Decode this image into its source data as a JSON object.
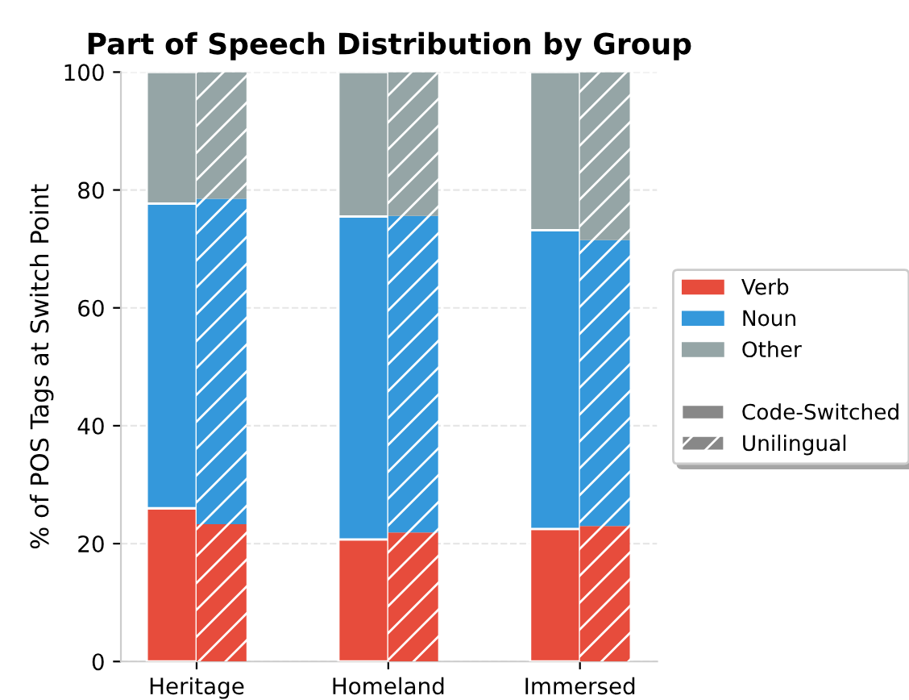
{
  "chart_data": [
    {
      "type": "bar",
      "stacked": true,
      "title": "Part of Speech Distribution by Group",
      "ylabel": "% of POS Tags at Switch Point",
      "categories": [
        "Heritage",
        "Homeland",
        "Immersed"
      ],
      "series": [
        {
          "name": "Verb",
          "color": "#e74c3c",
          "values": [
            26.0,
            20.7,
            22.5
          ]
        },
        {
          "name": "Noun",
          "color": "#3498db",
          "values": [
            51.7,
            54.8,
            50.7
          ]
        },
        {
          "name": "Other",
          "color": "#95a5a6",
          "values": [
            22.3,
            24.5,
            26.8
          ]
        }
      ],
      "annotations": [
        "Code-Switched"
      ],
      "ylim": [
        0,
        100
      ],
      "yticks": [
        0,
        20,
        40,
        60,
        80,
        100
      ],
      "grid": "y",
      "legend": "right"
    },
    {
      "type": "bar",
      "stacked": true,
      "categories": [
        null,
        null,
        null
      ],
      "series": [
        {
          "color": "#e74c3c",
          "values": [
            23.3,
            21.9,
            23.0
          ]
        },
        {
          "color": "#3498db",
          "values": [
            55.2,
            53.7,
            48.5
          ]
        },
        {
          "color": "#95a5a6",
          "values": [
            21.5,
            24.4,
            28.5
          ]
        }
      ],
      "annotations": [
        "Unilingual"
      ],
      "ylim": [
        0,
        100
      ],
      "yticks": [
        0,
        20,
        40,
        60,
        80,
        100
      ],
      "tick_labels": false
    }
  ]
}
